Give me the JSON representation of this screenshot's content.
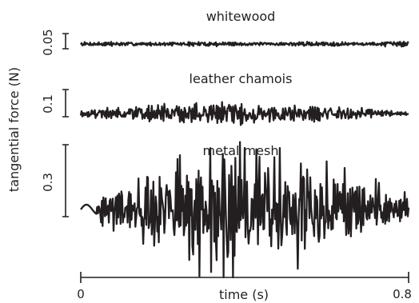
{
  "chart_data": {
    "type": "line",
    "ylabel": "tangential force (N)",
    "xlabel": "time (s)",
    "xlim": [
      0,
      0.8
    ],
    "x_ticks": [
      "0",
      "0.8"
    ],
    "panels": [
      {
        "title": "whitewood",
        "scale_bar": "0.05",
        "scale_value": 0.05,
        "amplitude": 0.012,
        "seed": 7,
        "envelope": "flat"
      },
      {
        "title": "leather chamois",
        "scale_bar": "0.1",
        "scale_value": 0.1,
        "amplitude": 0.055,
        "seed": 19,
        "envelope": "bulge"
      },
      {
        "title": "metal mesh",
        "scale_bar": "0.3",
        "scale_value": 0.3,
        "amplitude": 0.24,
        "seed": 41,
        "envelope": "mesh"
      }
    ]
  }
}
